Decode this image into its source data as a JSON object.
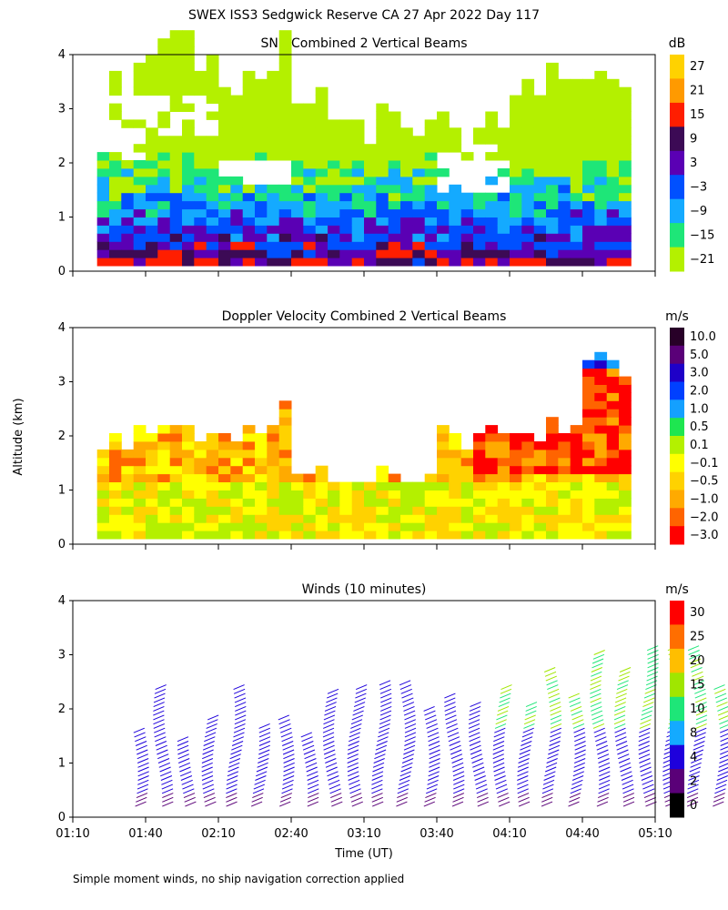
{
  "figure_title": "SWEX ISS3 Sedgwick Reserve CA  27 Apr 2022 Day 117",
  "footnote": "Simple moment winds, no ship navigation correction applied",
  "shared_ylabel": "Altitude (km)",
  "shared_xlabel": "Time (UT)",
  "chart_data": [
    {
      "type": "heatmap",
      "title": "SNR Combined 2 Vertical Beams",
      "unit": "dB",
      "xlabel": "",
      "ylabel": "Altitude (km)",
      "x_ticks": [
        "01:10",
        "01:40",
        "02:10",
        "02:40",
        "03:10",
        "03:40",
        "04:10",
        "04:40",
        "05:10"
      ],
      "y_ticks": [
        "0",
        "1",
        "2",
        "3",
        "4"
      ],
      "ylim": [
        0,
        4
      ],
      "colorbar_labels": [
        "27",
        "21",
        "15",
        "9",
        "3",
        "−3",
        "−9",
        "−15",
        "−21"
      ],
      "colorbar_colors": [
        "#ffd200",
        "#ff9a00",
        "#ff1e00",
        "#3c0a55",
        "#5a00b4",
        "#0050ff",
        "#14aaff",
        "#1ee678",
        "#b4f000"
      ],
      "profiles": [
        {
          "time": "01:10",
          "top_km": 3.6,
          "gap_km": [
            1.9,
            3.1
          ]
        },
        {
          "time": "01:40",
          "top_km": 4.0,
          "gap_km": [
            2.4,
            3.2
          ]
        },
        {
          "time": "02:10",
          "top_km": 4.0,
          "gap_km": [
            1.5,
            2.0
          ]
        },
        {
          "time": "02:40",
          "top_km": 3.2,
          "gap_km": null
        },
        {
          "time": "03:10",
          "top_km": 2.9,
          "gap_km": null
        },
        {
          "time": "03:40",
          "top_km": 2.7,
          "gap_km": [
            1.3,
            2.2
          ]
        },
        {
          "time": "04:10",
          "top_km": 3.7,
          "gap_km": null
        },
        {
          "time": "04:40",
          "top_km": 3.5,
          "gap_km": null
        },
        {
          "time": "05:10",
          "top_km": 3.5,
          "gap_km": null
        }
      ]
    },
    {
      "type": "heatmap",
      "title": "Doppler Velocity Combined 2 Vertical Beams",
      "unit": "m/s",
      "xlabel": "",
      "ylabel": "Altitude (km)",
      "x_ticks": [
        "01:10",
        "01:40",
        "02:10",
        "02:40",
        "03:10",
        "03:40",
        "04:10",
        "04:40",
        "05:10"
      ],
      "y_ticks": [
        "0",
        "1",
        "2",
        "3",
        "4"
      ],
      "ylim": [
        0,
        4
      ],
      "colorbar_labels": [
        "10.0",
        "5.0",
        "3.0",
        "2.0",
        "1.0",
        "0.5",
        "0.1",
        "−0.1",
        "−0.5",
        "−1.0",
        "−2.0",
        "−3.0"
      ],
      "colorbar_colors": [
        "#280028",
        "#5a0078",
        "#1e00c8",
        "#0040ff",
        "#14a0ff",
        "#1ee650",
        "#b4f000",
        "#ffff00",
        "#ffd200",
        "#ffaa00",
        "#ff6400",
        "#ff0000"
      ],
      "profiles": [
        {
          "time": "01:10",
          "top_km": 2.0,
          "gap_km": null
        },
        {
          "time": "01:40",
          "top_km": 2.0,
          "gap_km": null
        },
        {
          "time": "02:10",
          "top_km": 2.3,
          "gap_km": null
        },
        {
          "time": "02:40",
          "top_km": 1.3,
          "gap_km": null
        },
        {
          "time": "03:10",
          "top_km": 1.3,
          "gap_km": null
        },
        {
          "time": "03:40",
          "top_km": 2.0,
          "gap_km": null
        },
        {
          "time": "04:10",
          "top_km": 2.2,
          "gap_km": null
        },
        {
          "time": "04:40",
          "top_km": 3.3,
          "gap_km": null
        },
        {
          "time": "05:10",
          "top_km": 2.9,
          "gap_km": null
        }
      ]
    },
    {
      "type": "scatter",
      "title": "Winds (10 minutes)",
      "unit": "m/s",
      "xlabel": "Time (UT)",
      "ylabel": "Altitude (km)",
      "x_ticks": [
        "01:10",
        "01:40",
        "02:10",
        "02:40",
        "03:10",
        "03:40",
        "04:10",
        "04:40",
        "05:10"
      ],
      "y_ticks": [
        "0",
        "1",
        "2",
        "3",
        "4"
      ],
      "ylim": [
        0,
        4
      ],
      "colorbar_labels": [
        "30",
        "25",
        "20",
        "15",
        "10",
        "8",
        "4",
        "2",
        "0"
      ],
      "colorbar_colors": [
        "#ff0000",
        "#ff6e00",
        "#ffbe00",
        "#a0e600",
        "#1ee678",
        "#14aaff",
        "#1e00dc",
        "#5a0078",
        "#000000"
      ],
      "profile_times_min": [
        95,
        105,
        115,
        125,
        135,
        145,
        155,
        165,
        175,
        185,
        195,
        205,
        215,
        225,
        235,
        245,
        255,
        265,
        275,
        285,
        295,
        305,
        315,
        325,
        335
      ]
    }
  ]
}
